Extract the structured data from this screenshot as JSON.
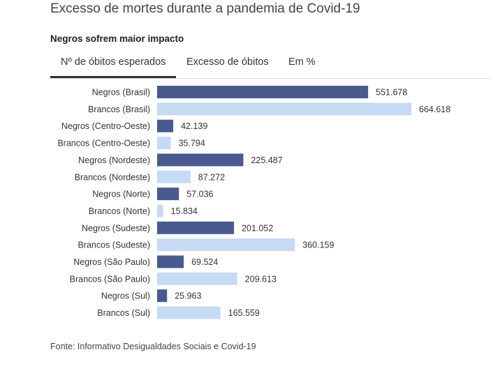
{
  "header": {
    "title": "Excesso de mortes durante a pandemia de Covid-19",
    "subtitle": "Negros sofrem maior impacto"
  },
  "tabs": [
    {
      "label": "Nº de óbitos esperados",
      "active": true
    },
    {
      "label": "Excesso de óbitos",
      "active": false
    },
    {
      "label": "Em %",
      "active": false
    }
  ],
  "colors": {
    "negros": "#4a5a8e",
    "brancos": "#c6daf3"
  },
  "chart_data": {
    "type": "bar",
    "orientation": "horizontal",
    "categories": [
      "Negros (Brasil)",
      "Brancos (Brasil)",
      "Negros (Centro-Oeste)",
      "Brancos (Centro-Oeste)",
      "Negros (Nordeste)",
      "Brancos (Nordeste)",
      "Negros (Norte)",
      "Brancos (Norte)",
      "Negros (Sudeste)",
      "Brancos (Sudeste)",
      "Negros (São Paulo)",
      "Brancos (São Paulo)",
      "Negros (Sul)",
      "Brancos (Sul)"
    ],
    "values": [
      551678,
      664618,
      42139,
      35794,
      225487,
      87272,
      57036,
      15834,
      201052,
      360159,
      69524,
      209613,
      25963,
      165559
    ],
    "value_labels": [
      "551.678",
      "664.618",
      "42.139",
      "35.794",
      "225.487",
      "87.272",
      "57.036",
      "15.834",
      "201.052",
      "360.159",
      "69.524",
      "209.613",
      "25.963",
      "165.559"
    ],
    "group": [
      "negros",
      "brancos",
      "negros",
      "brancos",
      "negros",
      "brancos",
      "negros",
      "brancos",
      "negros",
      "brancos",
      "negros",
      "brancos",
      "negros",
      "brancos"
    ],
    "xlim": [
      0,
      664618
    ],
    "grid": false,
    "legend": "none"
  },
  "footer": {
    "source": "Fonte: Informativo Desigualdades Sociais e Covid-19"
  }
}
